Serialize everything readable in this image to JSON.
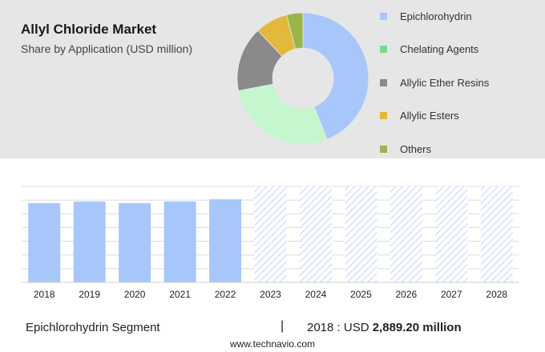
{
  "header": {
    "title": "Allyl Chloride Market",
    "subtitle": "Share by Application (USD million)"
  },
  "legend": [
    {
      "label": "Epichlorohydrin",
      "color": "#a7c7fb"
    },
    {
      "label": "Chelating Agents",
      "color": "#6fe08a"
    },
    {
      "label": "Allylic Ether Resins",
      "color": "#8a8a8a"
    },
    {
      "label": "Allylic Esters",
      "color": "#e3b93b"
    },
    {
      "label": "Others",
      "color": "#9ab54a"
    }
  ],
  "chart_data": [
    {
      "type": "pie",
      "donut": true,
      "title": "Share by Application (USD million)",
      "categories": [
        "Epichlorohydrin",
        "Chelating Agents",
        "Allylic Ether Resins",
        "Allylic Esters",
        "Others"
      ],
      "values": [
        44,
        28,
        16,
        8,
        4
      ],
      "colors": [
        "#a7c7fb",
        "#c5f7cf",
        "#8a8a8a",
        "#e3b93b",
        "#9ab54a"
      ]
    },
    {
      "type": "bar",
      "categories": [
        "2018",
        "2019",
        "2020",
        "2021",
        "2022",
        "2023",
        "2024",
        "2025",
        "2026",
        "2027",
        "2028"
      ],
      "values": [
        2889.2,
        2950,
        2890,
        2950,
        3030,
        null,
        null,
        null,
        null,
        null,
        null
      ],
      "forecast_years": [
        "2023",
        "2024",
        "2025",
        "2026",
        "2027",
        "2028"
      ],
      "bar_color": "#a7c7fb",
      "forecast_color": "#c9daf8",
      "ylim": [
        0,
        3500
      ],
      "grid": true
    }
  ],
  "footer": {
    "segment": "Epichlorohydrin Segment",
    "separator": "|",
    "year_label": "2018 : USD",
    "value": "2,889.20 million",
    "url": "www.technavio.com"
  }
}
